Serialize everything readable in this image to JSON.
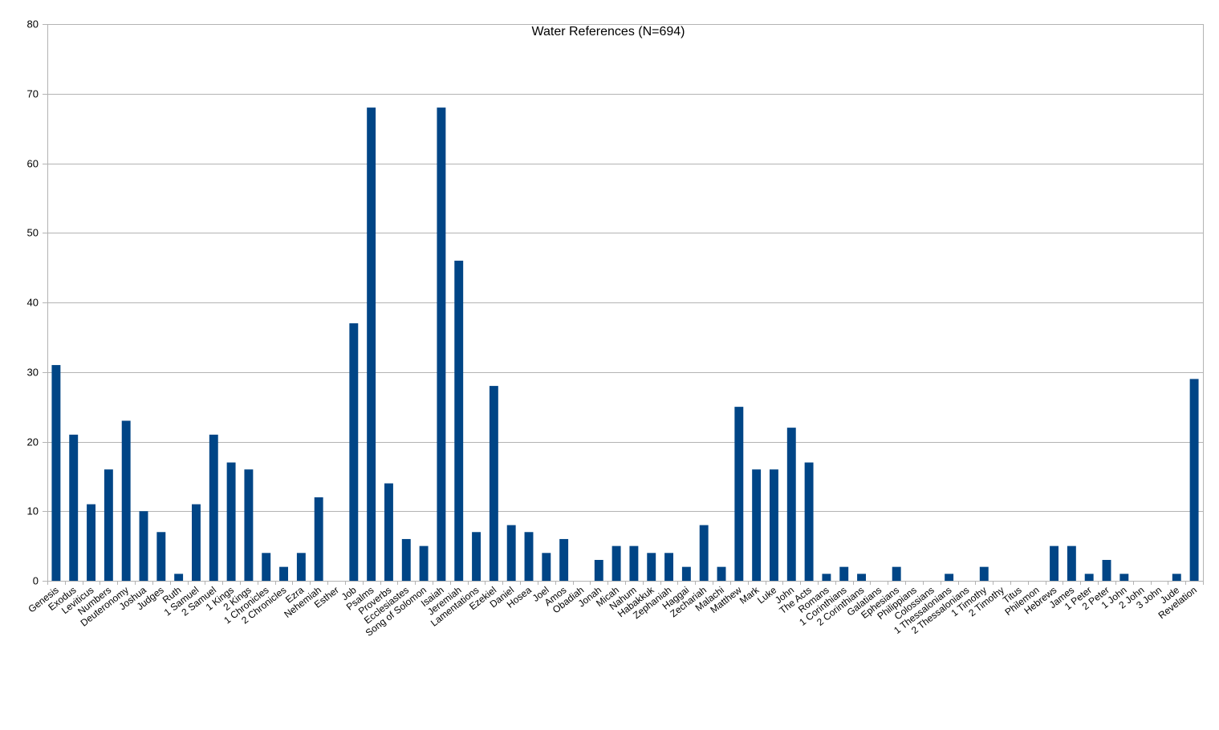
{
  "chart_data": {
    "type": "bar",
    "title": "Water References (N=694)",
    "xlabel": "",
    "ylabel": "",
    "ylim": [
      0,
      80
    ],
    "yticks": [
      0,
      10,
      20,
      30,
      40,
      50,
      60,
      70,
      80
    ],
    "grid": true,
    "legend": "none",
    "bar_color": "#004586",
    "categories": [
      "Genesis",
      "Exodus",
      "Leviticus",
      "Numbers",
      "Deuteronomy",
      "Joshua",
      "Judges",
      "Ruth",
      "1 Samuel",
      "2 Samuel",
      "1 Kings",
      "2 Kings",
      "1 Chronicles",
      "2 Chronicles",
      "Ezra",
      "Nehemiah",
      "Esther",
      "Job",
      "Psalms",
      "Proverbs",
      "Ecclesiastes",
      "Song of Solomon",
      "Isaiah",
      "Jeremiah",
      "Lamentations",
      "Ezekiel",
      "Daniel",
      "Hosea",
      "Joel",
      "Amos",
      "Obadiah",
      "Jonah",
      "Micah",
      "Nahum",
      "Habakkuk",
      "Zephaniah",
      "Haggai",
      "Zechariah",
      "Malachi",
      "Matthew",
      "Mark",
      "Luke",
      "John",
      "The Acts",
      "Romans",
      "1 Corinthians",
      "2 Corinthians",
      "Galatians",
      "Ephesians",
      "Philippians",
      "Colossians",
      "1 Thessalonians",
      "2 Thessalonians",
      "1 Timothy",
      "2 Timothy",
      "Titus",
      "Philemon",
      "Hebrews",
      "James",
      "1 Peter",
      "2 Peter",
      "1 John",
      "2 John",
      "3 John",
      "Jude",
      "Revelation"
    ],
    "values": [
      31,
      21,
      11,
      16,
      23,
      10,
      7,
      1,
      11,
      21,
      17,
      16,
      4,
      2,
      4,
      12,
      0,
      37,
      68,
      14,
      6,
      5,
      68,
      46,
      7,
      28,
      8,
      7,
      4,
      6,
      0,
      3,
      5,
      5,
      4,
      4,
      2,
      8,
      2,
      25,
      16,
      16,
      22,
      17,
      1,
      2,
      1,
      0,
      2,
      0,
      0,
      1,
      0,
      2,
      0,
      0,
      0,
      5,
      5,
      1,
      3,
      1,
      0,
      0,
      1,
      29
    ]
  }
}
